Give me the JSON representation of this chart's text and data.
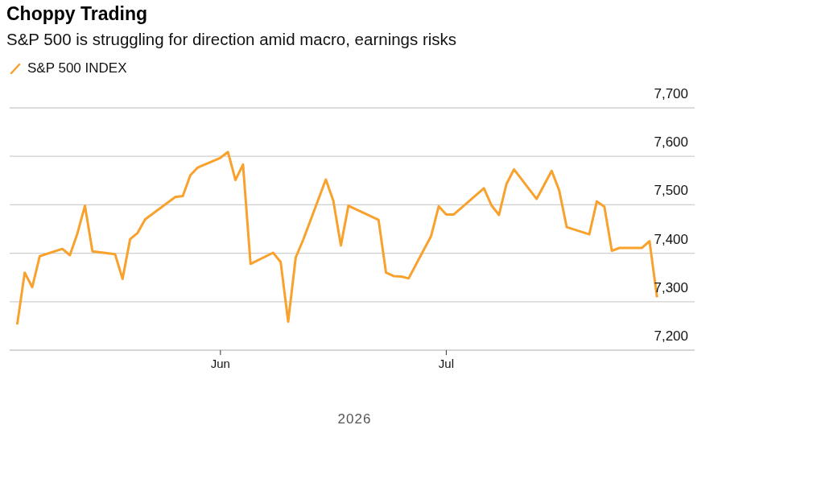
{
  "chart_data": {
    "type": "line",
    "title": "Choppy Trading",
    "subtitle": "S&P 500 is struggling for direction amid macro, earnings risks",
    "xlabel": "2026",
    "x": [
      "2026-05-05",
      "2026-05-06",
      "2026-05-07",
      "2026-05-08",
      "2026-05-11",
      "2026-05-12",
      "2026-05-13",
      "2026-05-14",
      "2026-05-15",
      "2026-05-18",
      "2026-05-19",
      "2026-05-20",
      "2026-05-21",
      "2026-05-22",
      "2026-05-26",
      "2026-05-27",
      "2026-05-28",
      "2026-05-29",
      "2026-06-01",
      "2026-06-02",
      "2026-06-03",
      "2026-06-04",
      "2026-06-05",
      "2026-06-08",
      "2026-06-09",
      "2026-06-10",
      "2026-06-11",
      "2026-06-12",
      "2026-06-15",
      "2026-06-16",
      "2026-06-17",
      "2026-06-18",
      "2026-06-22",
      "2026-06-23",
      "2026-06-24",
      "2026-06-25",
      "2026-06-26",
      "2026-06-29",
      "2026-06-30",
      "2026-07-01",
      "2026-07-02",
      "2026-07-06",
      "2026-07-07",
      "2026-07-08",
      "2026-07-09",
      "2026-07-10",
      "2026-07-13",
      "2026-07-15",
      "2026-07-16",
      "2026-07-17",
      "2026-07-20",
      "2026-07-21",
      "2026-07-22",
      "2026-07-23",
      "2026-07-24",
      "2026-07-27",
      "2026-07-28",
      "2026-07-29"
    ],
    "series": [
      {
        "name": "S&P 500 INDEX",
        "color": "#f9a12d",
        "values": [
          7253,
          7360,
          7330,
          7394,
          7409,
          7396,
          7441,
          7498,
          7404,
          7398,
          7347,
          7429,
          7442,
          7470,
          7516,
          7518,
          7561,
          7577,
          7597,
          7609,
          7551,
          7583,
          7378,
          7401,
          7382,
          7259,
          7391,
          7428,
          7552,
          7508,
          7416,
          7498,
          7469,
          7360,
          7353,
          7352,
          7348,
          7436,
          7497,
          7480,
          7480,
          7534,
          7499,
          7479,
          7543,
          7573,
          7512,
          7570,
          7530,
          7454,
          7439,
          7507,
          7496,
          7405,
          7411,
          7411,
          7425,
          7309
        ]
      }
    ],
    "xlim": [
      "2026-05-04",
      "2026-08-03"
    ],
    "xticks": [
      {
        "value": "2026-06-01",
        "label": "Jun"
      },
      {
        "value": "2026-07-01",
        "label": "Jul"
      }
    ],
    "ylim": [
      7200,
      7700
    ],
    "yticks": [
      {
        "value": 7200,
        "label": "7,200"
      },
      {
        "value": 7300,
        "label": "7,300"
      },
      {
        "value": 7400,
        "label": "7,400"
      },
      {
        "value": 7500,
        "label": "7,500"
      },
      {
        "value": 7600,
        "label": "7,600"
      },
      {
        "value": 7700,
        "label": "7,700"
      }
    ],
    "grid": "y",
    "legend": "top left",
    "marker": "none",
    "line_style": "solid"
  }
}
